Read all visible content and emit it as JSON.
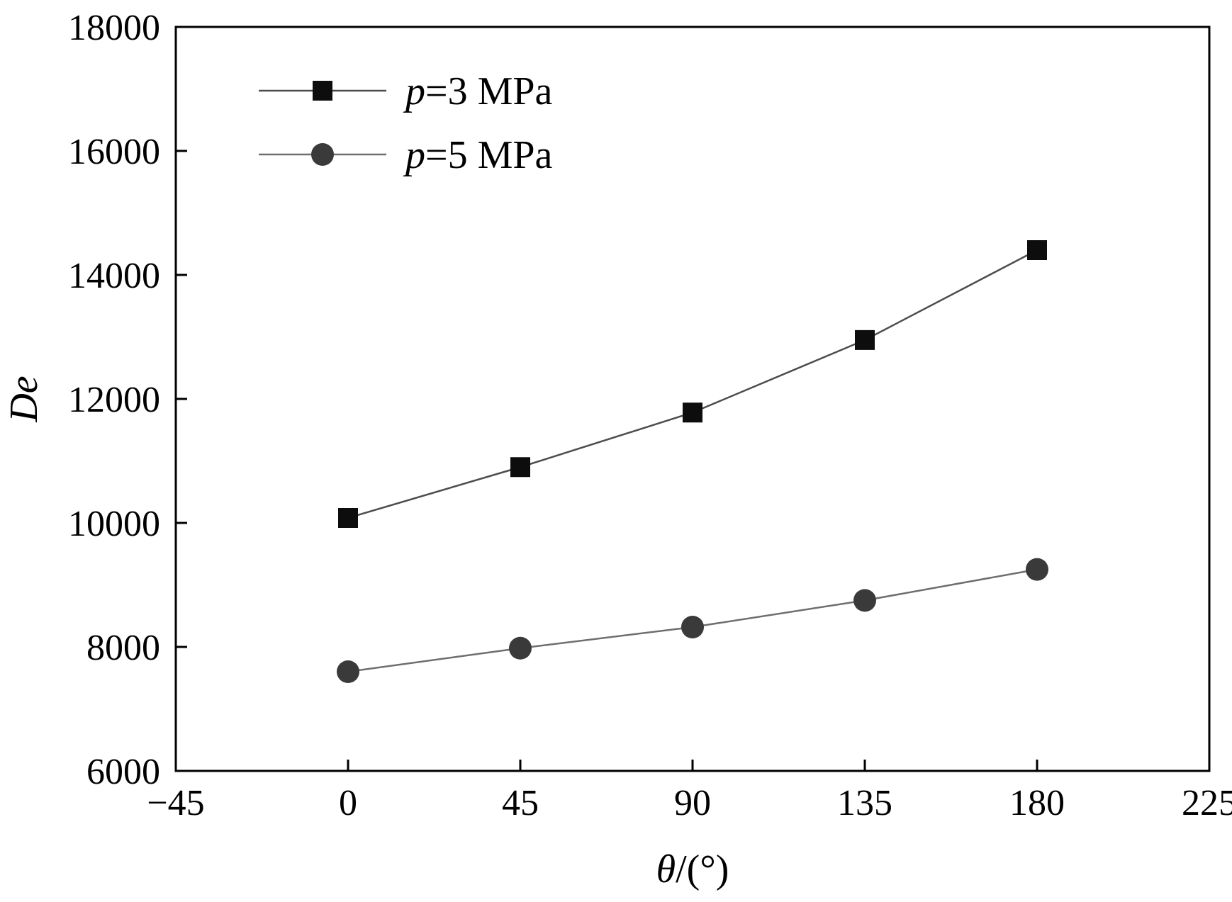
{
  "chart_data": {
    "type": "line",
    "title": "",
    "xlabel_italic": "θ",
    "xlabel_rest": "/(°)",
    "ylabel": "De",
    "x": [
      0,
      45,
      90,
      135,
      180
    ],
    "series": [
      {
        "name": "p=3 MPa",
        "name_italic": "p",
        "name_rest": "=3 MPa",
        "marker": "square",
        "marker_color": "#0d0d0d",
        "line_color": "#4d4d4d",
        "values": [
          10080,
          10900,
          11780,
          12950,
          14400
        ]
      },
      {
        "name": "p=5 MPa",
        "name_italic": "p",
        "name_rest": "=5 MPa",
        "marker": "circle",
        "marker_color": "#3a3a3a",
        "line_color": "#6e6e6e",
        "values": [
          7600,
          7980,
          8320,
          8750,
          9250
        ]
      }
    ],
    "xlim": [
      -45,
      225
    ],
    "ylim": [
      6000,
      18000
    ],
    "xticks": [
      -45,
      0,
      45,
      90,
      135,
      180,
      225
    ],
    "yticks": [
      6000,
      8000,
      10000,
      12000,
      14000,
      16000,
      18000
    ],
    "grid": false,
    "legend_position": "top-left-inside",
    "axis_color": "#000000",
    "background": "#ffffff"
  }
}
